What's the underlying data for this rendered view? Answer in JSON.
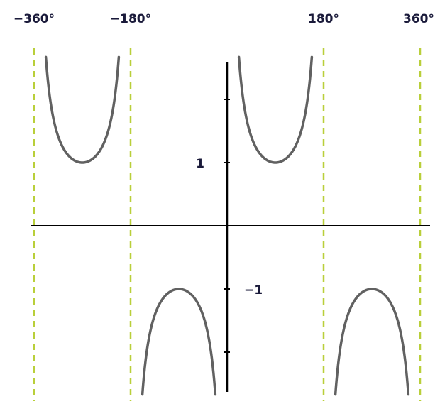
{
  "chart_data": {
    "type": "line",
    "title": "",
    "xlabel": "",
    "ylabel": "",
    "xlim": [
      -370,
      370
    ],
    "ylim": [
      -2.6,
      2.6
    ],
    "grid": false,
    "x_tick_labels": [
      {
        "value": -360,
        "label": "−360°"
      },
      {
        "value": -180,
        "label": "−180°"
      },
      {
        "value": 180,
        "label": "180°"
      },
      {
        "value": 360,
        "label": "360°"
      }
    ],
    "y_tick_labels": [
      {
        "value": 1,
        "label": "1"
      },
      {
        "value": -1,
        "label": "−1"
      }
    ],
    "y_tick_marks": [
      2,
      1,
      -1,
      -2
    ],
    "asymptotes_x": [
      -360,
      -180,
      180,
      360
    ],
    "series": [
      {
        "function": "cosec",
        "branches": [
          {
            "x": [
              -350,
              -330,
              -310,
              -290,
              -270,
              -250,
              -230,
              -210,
              -190
            ],
            "y": [
              5.76,
              2.0,
              1.31,
              1.06,
              1.0,
              1.06,
              1.31,
              2.0,
              5.76
            ]
          },
          {
            "x": [
              -170,
              -150,
              -130,
              -110,
              -90,
              -70,
              -50,
              -30,
              -10
            ],
            "y": [
              -5.76,
              -2.0,
              -1.31,
              -1.06,
              -1.0,
              -1.06,
              -1.31,
              -2.0,
              -5.76
            ]
          },
          {
            "x": [
              10,
              30,
              50,
              70,
              90,
              110,
              130,
              150,
              170
            ],
            "y": [
              5.76,
              2.0,
              1.31,
              1.06,
              1.0,
              1.06,
              1.31,
              2.0,
              5.76
            ]
          },
          {
            "x": [
              190,
              210,
              230,
              250,
              270,
              290,
              310,
              330,
              350
            ],
            "y": [
              -5.76,
              -2.0,
              -1.31,
              -1.06,
              -1.0,
              -1.06,
              -1.31,
              -2.0,
              -5.76
            ]
          }
        ]
      }
    ],
    "colors": {
      "curve": "#616161",
      "axis": "#000000",
      "asymptote": "#b9cf3a",
      "label": "#1a1a3a"
    }
  }
}
